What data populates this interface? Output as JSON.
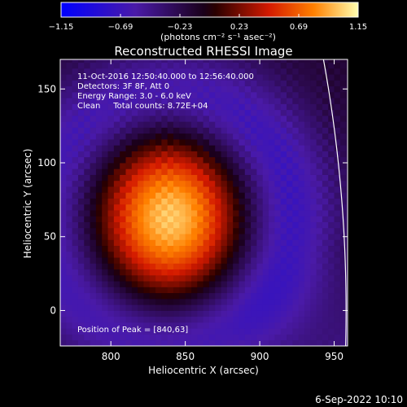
{
  "chart_data": {
    "type": "heatmap",
    "title": "Reconstructed RHESSI Image",
    "xlabel": "Heliocentric X (arcsec)",
    "ylabel": "Heliocentric Y (arcsec)",
    "xlim": [
      766,
      959
    ],
    "ylim": [
      -24,
      170
    ],
    "xticks": [
      800,
      850,
      900,
      950
    ],
    "yticks": [
      0,
      50,
      100,
      150
    ],
    "colorbar": {
      "min": -1.15,
      "max": 1.15,
      "ticks": [
        "-1.15",
        "-0.69",
        "-0.23",
        "0.23",
        "0.69",
        "1.15"
      ],
      "unit_label": "(photons cm⁻² s⁻¹ asec⁻²)"
    },
    "annotations": [
      "11-Oct-2016 12:50:40.000 to 12:56:40.000",
      "Detectors: 3F 8F, Att 0",
      "Energy Range: 3.0 - 6.0 keV",
      "Clean     Total counts: 8.72E+04"
    ],
    "peak_label": "Position of Peak = [840,63]",
    "peak": {
      "x": 840,
      "y": 63,
      "value": 1.15
    },
    "source": {
      "cx": 840,
      "cy": 63,
      "sx": 32,
      "sy": 36
    },
    "limb": {
      "center_x": 0,
      "center_y": 0,
      "radius": 958
    }
  },
  "footer": {
    "date": "6-Sep-2022 10:10"
  }
}
